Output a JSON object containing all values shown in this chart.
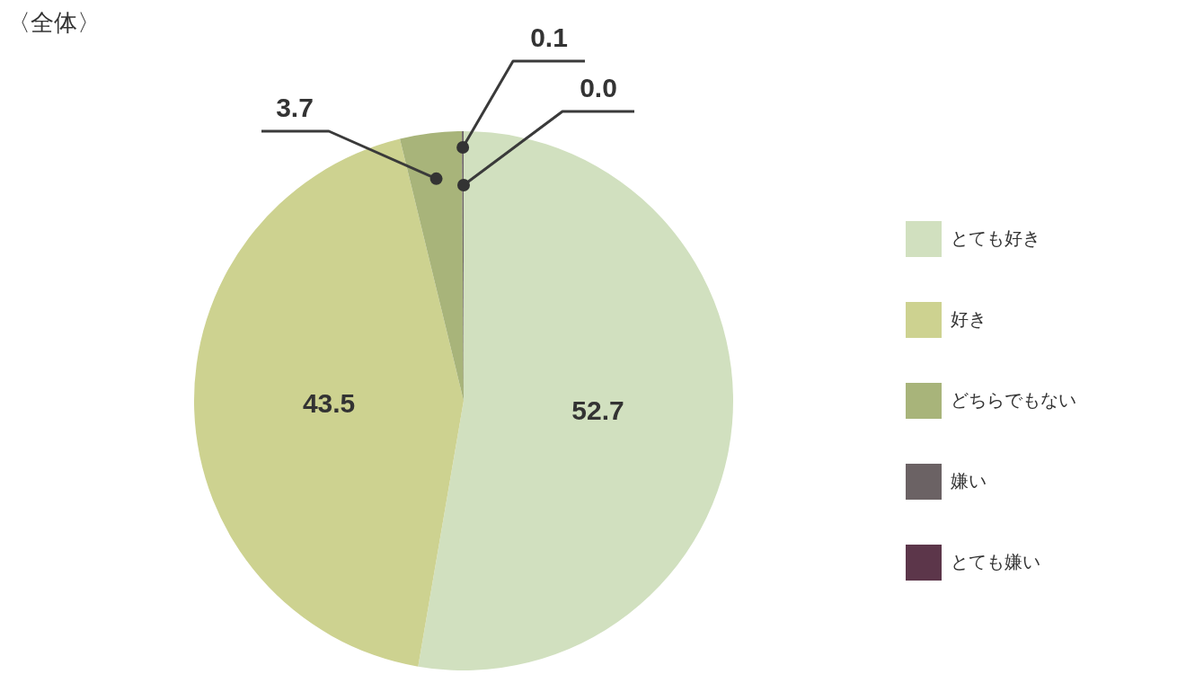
{
  "chart_data": {
    "type": "pie",
    "title": "〈全体〉",
    "categories": [
      "とても好き",
      "好き",
      "どちらでもない",
      "嫌い",
      "とても嫌い"
    ],
    "values": [
      52.7,
      43.5,
      3.7,
      0.1,
      0.0
    ],
    "value_labels": [
      "52.7",
      "43.5",
      "3.7",
      "0.1",
      "0.0"
    ],
    "colors": [
      "#d1e0bf",
      "#cdd290",
      "#a8b47a",
      "#6b6264",
      "#5c364a"
    ],
    "legend": "right"
  }
}
